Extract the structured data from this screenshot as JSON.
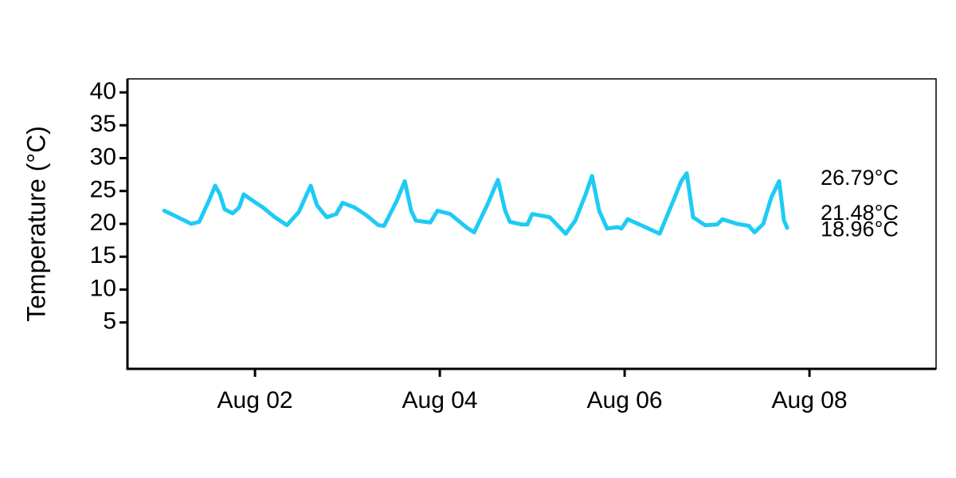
{
  "chart_data": {
    "type": "line",
    "ylabel": "Temperature (°C)",
    "x": [
      1.017,
      1.138,
      1.31,
      1.397,
      1.5,
      1.569,
      1.621,
      1.672,
      1.759,
      1.828,
      1.879,
      1.957,
      2.086,
      2.216,
      2.345,
      2.474,
      2.56,
      2.603,
      2.672,
      2.776,
      2.879,
      2.948,
      3.078,
      3.207,
      3.336,
      3.397,
      3.534,
      3.621,
      3.69,
      3.741,
      3.897,
      3.974,
      4.112,
      4.284,
      4.371,
      4.517,
      4.629,
      4.707,
      4.759,
      4.888,
      4.948,
      5.0,
      5.19,
      5.293,
      5.362,
      5.466,
      5.578,
      5.647,
      5.724,
      5.81,
      5.922,
      5.966,
      6.034,
      6.224,
      6.379,
      6.526,
      6.612,
      6.672,
      6.741,
      6.871,
      7.0,
      7.06,
      7.216,
      7.345,
      7.405,
      7.5,
      7.586,
      7.672,
      7.724,
      7.759
    ],
    "series": [
      {
        "color": "#1ecbf5",
        "values": [
          22.0,
          21.2,
          20.0,
          20.3,
          23.5,
          25.8,
          24.5,
          22.2,
          21.6,
          22.5,
          24.5,
          23.7,
          22.5,
          21.0,
          19.8,
          21.8,
          24.5,
          25.8,
          22.8,
          21.0,
          21.5,
          23.2,
          22.5,
          21.3,
          19.8,
          19.7,
          23.5,
          26.5,
          22.0,
          20.5,
          20.2,
          22.0,
          21.5,
          19.5,
          18.7,
          23.0,
          26.7,
          22.0,
          20.3,
          19.9,
          19.9,
          21.5,
          21.0,
          19.5,
          18.5,
          20.5,
          24.5,
          27.3,
          22.0,
          19.3,
          19.5,
          19.3,
          20.7,
          19.5,
          18.5,
          23.5,
          26.5,
          27.7,
          21.0,
          19.8,
          19.9,
          20.7,
          20.0,
          19.7,
          18.7,
          20.0,
          24.0,
          26.5,
          20.5,
          19.4
        ]
      }
    ],
    "xlim": [
      0.62,
      9.37
    ],
    "xticks": [
      {
        "value": 2,
        "label": "Aug 02"
      },
      {
        "value": 4,
        "label": "Aug 04"
      },
      {
        "value": 6,
        "label": "Aug 06"
      },
      {
        "value": 8,
        "label": "Aug 08"
      }
    ],
    "ylim": [
      -2.06,
      42.06
    ],
    "yticks": [
      5,
      10,
      15,
      20,
      25,
      30,
      35,
      40
    ],
    "annotations": [
      {
        "value": 26.79,
        "label": "26.79°C"
      },
      {
        "value": 21.48,
        "label": "21.48°C"
      },
      {
        "value": 18.96,
        "label": "18.96°C"
      }
    ]
  }
}
